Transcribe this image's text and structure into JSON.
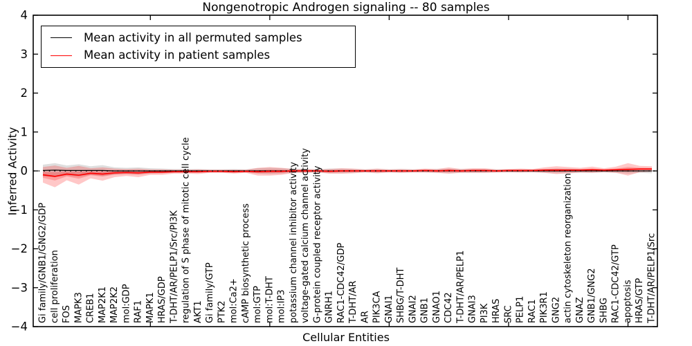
{
  "chart_data": {
    "type": "line",
    "title": "Nongenotropic Androgen signaling -- 80 samples",
    "xlabel": "Cellular Entities",
    "ylabel": "Inferred Activity",
    "ylim": [
      -4,
      4
    ],
    "yticks": [
      4,
      3,
      2,
      1,
      0,
      -1,
      -2,
      -3,
      -4
    ],
    "ytick_labels": [
      "4",
      "3",
      "2",
      "1",
      "0",
      "−1",
      "−2",
      "−3",
      "−4"
    ],
    "xticks_major_entity_numbers": [
      10,
      20,
      30,
      40,
      50
    ],
    "grid": false,
    "zero_line": {
      "value": 0,
      "style": "dotted",
      "color": "#000000"
    },
    "legend_position": "upper left",
    "categories": [
      "Gi family/GNB1/GNG2/GDP",
      "cell proliferation",
      "FOS",
      "MAPK3",
      "CREB1",
      "MAP2K1",
      "MAP2K2",
      "mol:GDP",
      "RAF1",
      "MAPK1",
      "HRAS/GDP",
      "T-DHT/AR/PELP1/Src/PI3K",
      "regulation of S phase of mitotic cell cycle",
      "AKT1",
      "Gi family/GTP",
      "PTK2",
      "mol:Ca2+",
      "cAMP biosynthetic process",
      "mol:GTP",
      "mol:T-DHT",
      "mol:IP3",
      "potassium channel inhibitor activity",
      "voltage-gated calcium channel activity",
      "G-protein coupled receptor activity",
      "GNRH1",
      "RAC1-CDC42/GDP",
      "T-DHT/AR",
      "AR",
      "PIK3CA",
      "GNAI1",
      "SHBG/T-DHT",
      "GNAI2",
      "GNB1",
      "GNAO1",
      "CDC42",
      "T-DHT/AR/PELP1",
      "GNAI3",
      "PI3K",
      "HRAS",
      "SRC",
      "PELP1",
      "RAC1",
      "PIK3R1",
      "GNG2",
      "actin cytoskeleton reorganization",
      "GNAZ",
      "GNB1/GNG2",
      "SHBG",
      "RAC1-CDC42/GTP",
      "apoptosis",
      "HRAS/GTP",
      "T-DHT/AR/PELP1/Src"
    ],
    "series": [
      {
        "name": "Mean activity in all permuted samples",
        "color": "#000000",
        "band_color": "rgba(0,0,0,0.13)",
        "mean": [
          0.01,
          0.02,
          0.01,
          0.01,
          0.01,
          0.01,
          0.0,
          0.0,
          0.0,
          0.0,
          0.0,
          0.0,
          0.0,
          0.0,
          0.0,
          0.0,
          0.0,
          0.0,
          0.0,
          0.0,
          0.0,
          0.0,
          0.0,
          0.0,
          0.0,
          0.0,
          0.0,
          0.0,
          0.0,
          0.0,
          0.0,
          0.0,
          0.0,
          0.0,
          0.0,
          0.0,
          0.0,
          0.0,
          0.0,
          0.0,
          0.0,
          0.0,
          0.0,
          0.0,
          0.0,
          0.0,
          0.0,
          0.0,
          0.0,
          0.0,
          0.0,
          0.0
        ],
        "std": [
          0.15,
          0.18,
          0.13,
          0.16,
          0.11,
          0.14,
          0.09,
          0.08,
          0.09,
          0.07,
          0.06,
          0.05,
          0.05,
          0.05,
          0.04,
          0.04,
          0.05,
          0.04,
          0.07,
          0.08,
          0.07,
          0.05,
          0.05,
          0.04,
          0.06,
          0.06,
          0.05,
          0.04,
          0.05,
          0.04,
          0.05,
          0.04,
          0.04,
          0.05,
          0.06,
          0.05,
          0.05,
          0.05,
          0.04,
          0.04,
          0.04,
          0.04,
          0.05,
          0.06,
          0.06,
          0.05,
          0.05,
          0.04,
          0.05,
          0.07,
          0.05,
          0.06
        ]
      },
      {
        "name": "Mean activity in patient samples",
        "color": "#ff0000",
        "band_color": "rgba(255,0,0,0.22)",
        "mean": [
          -0.1,
          -0.14,
          -0.08,
          -0.11,
          -0.06,
          -0.08,
          -0.05,
          -0.04,
          -0.05,
          -0.03,
          -0.03,
          -0.02,
          -0.02,
          -0.02,
          -0.01,
          -0.01,
          -0.02,
          -0.01,
          -0.02,
          -0.01,
          -0.01,
          0.0,
          0.0,
          0.0,
          -0.01,
          0.0,
          0.0,
          0.0,
          0.0,
          0.0,
          0.0,
          0.0,
          0.01,
          0.0,
          0.01,
          0.0,
          0.01,
          0.01,
          0.0,
          0.01,
          0.01,
          0.01,
          0.02,
          0.02,
          0.02,
          0.02,
          0.03,
          0.02,
          0.03,
          0.04,
          0.05,
          0.05
        ],
        "std": [
          0.2,
          0.28,
          0.16,
          0.24,
          0.13,
          0.17,
          0.11,
          0.09,
          0.11,
          0.07,
          0.07,
          0.05,
          0.05,
          0.06,
          0.04,
          0.04,
          0.05,
          0.04,
          0.1,
          0.11,
          0.09,
          0.05,
          0.05,
          0.04,
          0.06,
          0.07,
          0.06,
          0.04,
          0.06,
          0.04,
          0.05,
          0.04,
          0.05,
          0.05,
          0.08,
          0.05,
          0.06,
          0.06,
          0.04,
          0.04,
          0.05,
          0.04,
          0.07,
          0.1,
          0.08,
          0.06,
          0.08,
          0.05,
          0.08,
          0.16,
          0.08,
          0.07
        ]
      }
    ]
  },
  "legend": {
    "entries": [
      {
        "label": "Mean activity in all permuted samples",
        "color": "#000000"
      },
      {
        "label": "Mean activity in patient samples",
        "color": "#ff0000"
      }
    ]
  }
}
